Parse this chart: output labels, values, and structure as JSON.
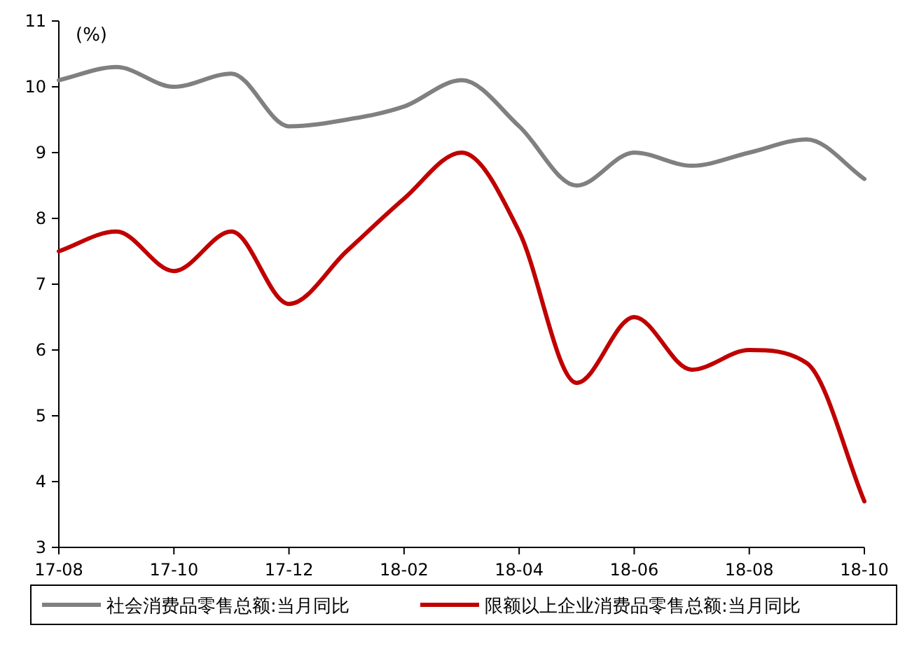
{
  "chart_data": {
    "type": "line",
    "ylabel": "(%)",
    "categories": [
      "17-08",
      null,
      "17-10",
      null,
      "17-12",
      null,
      "18-02",
      null,
      "18-04",
      null,
      "18-06",
      null,
      "18-08",
      null,
      "18-10"
    ],
    "series": [
      {
        "name": "社会消费品零售总额:当月同比",
        "color": "#808080",
        "values": [
          10.1,
          10.3,
          10.0,
          10.2,
          9.4,
          9.5,
          9.7,
          10.1,
          9.4,
          8.5,
          9.0,
          8.8,
          9.0,
          9.2,
          8.6
        ]
      },
      {
        "name": "限额以上企业消费品零售总额:当月同比",
        "color": "#c00000",
        "values": [
          7.5,
          7.8,
          7.2,
          7.8,
          6.7,
          7.5,
          8.3,
          9.0,
          7.8,
          5.5,
          6.5,
          5.7,
          6.0,
          5.8,
          3.7
        ]
      }
    ],
    "ylim": [
      3,
      11
    ],
    "yticks": [
      3,
      4,
      5,
      6,
      7,
      8,
      9,
      10,
      11
    ],
    "grid": false,
    "legend": "bottom",
    "marker": "none",
    "line_style": "solid"
  }
}
